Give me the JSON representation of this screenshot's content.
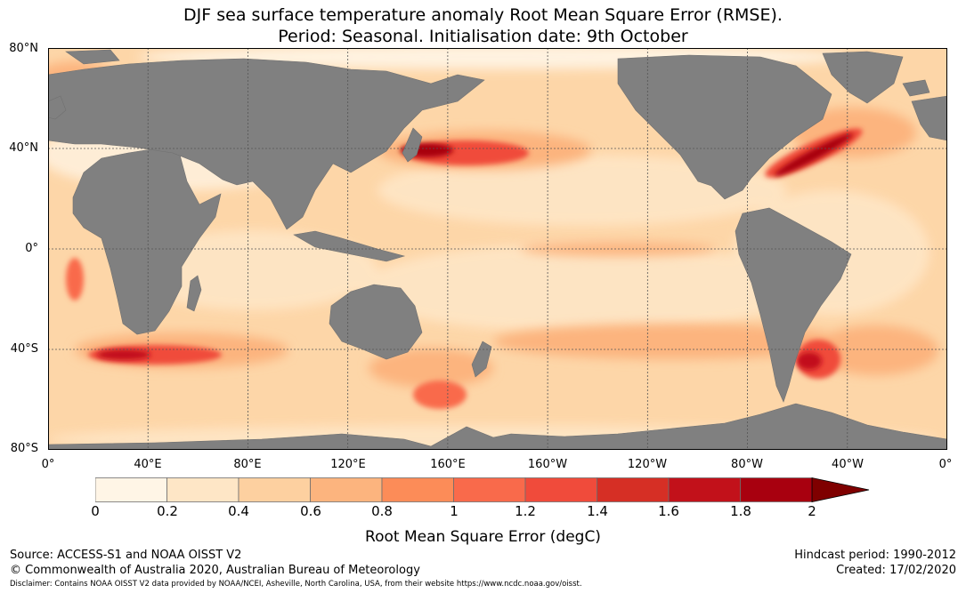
{
  "title": {
    "line1": "DJF sea surface temperature anomaly Root Mean Square Error (RMSE).",
    "line2": "Period: Seasonal. Initialisation date: 9th October"
  },
  "map": {
    "lat_ticks": [
      "80°N",
      "40°N",
      "0°",
      "40°S",
      "80°S"
    ],
    "lon_ticks": [
      "0°",
      "40°E",
      "80°E",
      "120°E",
      "160°E",
      "160°W",
      "120°W",
      "80°W",
      "40°W",
      "0°"
    ],
    "land_color": "#808080",
    "ocean_base_color": "#fdd6a8",
    "gridline_color": "#555555"
  },
  "colorbar": {
    "label": "Root Mean Square Error (degC)",
    "ticks": [
      "0",
      "0.2",
      "0.4",
      "0.6",
      "0.8",
      "1",
      "1.2",
      "1.4",
      "1.6",
      "1.8",
      "2"
    ],
    "colors": [
      "#fff5e6",
      "#fee6c6",
      "#fdd0a0",
      "#fcb47e",
      "#fc8c58",
      "#f96a4b",
      "#f04b3b",
      "#d62f25",
      "#c2111a",
      "#a8000f"
    ],
    "extend_color": "#7f0000"
  },
  "footer": {
    "source": "Source: ACCESS-S1 and NOAA OISST V2",
    "copyright": "© Commonwealth of Australia 2020, Australian Bureau of Meteorology",
    "disclaimer": "Disclaimer: Contains NOAA OISST V2 data provided by NOAA/NCEI, Asheville, North Carolina, USA, from their website https://www.ncdc.noaa.gov/oisst.",
    "hindcast": "Hindcast period: 1990-2012",
    "created": "Created: 17/02/2020"
  }
}
